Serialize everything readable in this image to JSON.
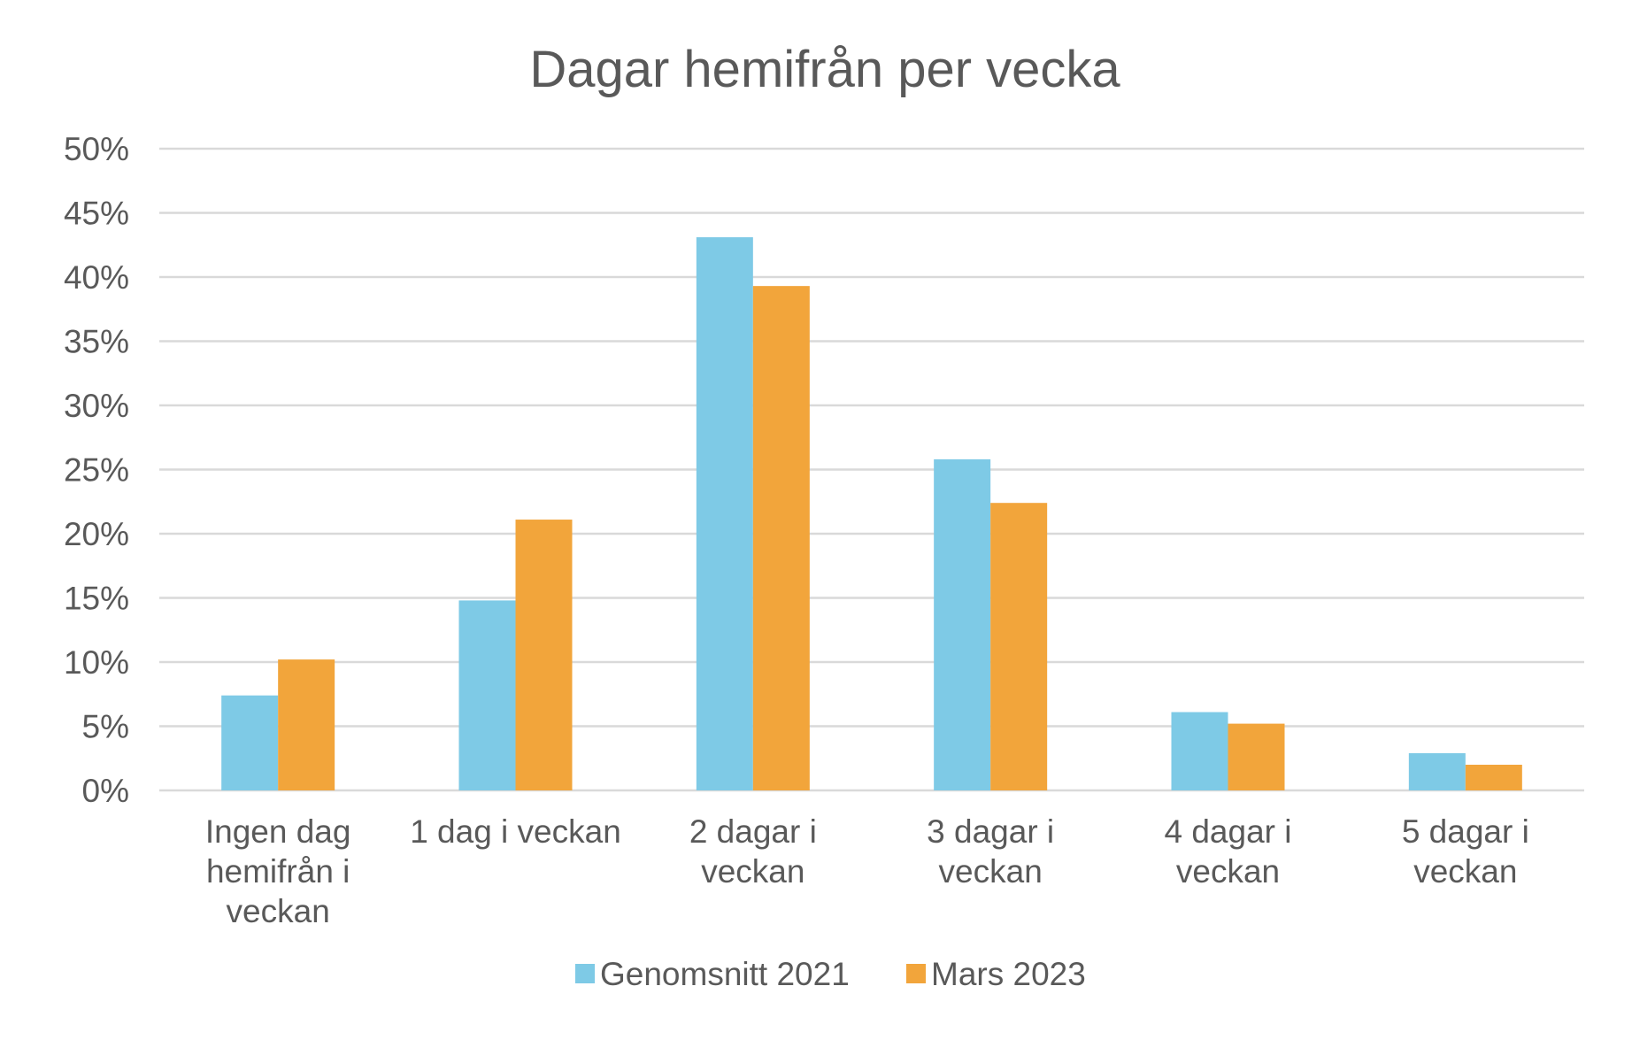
{
  "chart_data": {
    "type": "bar",
    "title": "Dagar hemifrån per vecka",
    "xlabel": "",
    "ylabel": "",
    "categories": [
      [
        "Ingen dag",
        "hemifrån i",
        "veckan"
      ],
      [
        "1 dag i veckan"
      ],
      [
        "2 dagar i",
        "veckan"
      ],
      [
        "3 dagar i",
        "veckan"
      ],
      [
        "4 dagar i",
        "veckan"
      ],
      [
        "5 dagar i",
        "veckan"
      ]
    ],
    "series": [
      {
        "name": "Genomsnitt 2021",
        "color": "#7ecae6",
        "values": [
          7.4,
          14.8,
          43.1,
          25.8,
          6.1,
          2.9
        ]
      },
      {
        "name": "Mars 2023",
        "color": "#f2a53b",
        "values": [
          10.2,
          21.1,
          39.3,
          22.4,
          5.2,
          2.0
        ]
      }
    ],
    "ylim": [
      0,
      50
    ],
    "yticks": [
      0,
      5,
      10,
      15,
      20,
      25,
      30,
      35,
      40,
      45,
      50
    ],
    "ytick_labels": [
      "0%",
      "5%",
      "10%",
      "15%",
      "20%",
      "25%",
      "30%",
      "35%",
      "40%",
      "45%",
      "50%"
    ],
    "grid": true,
    "legend_position": "bottom"
  }
}
